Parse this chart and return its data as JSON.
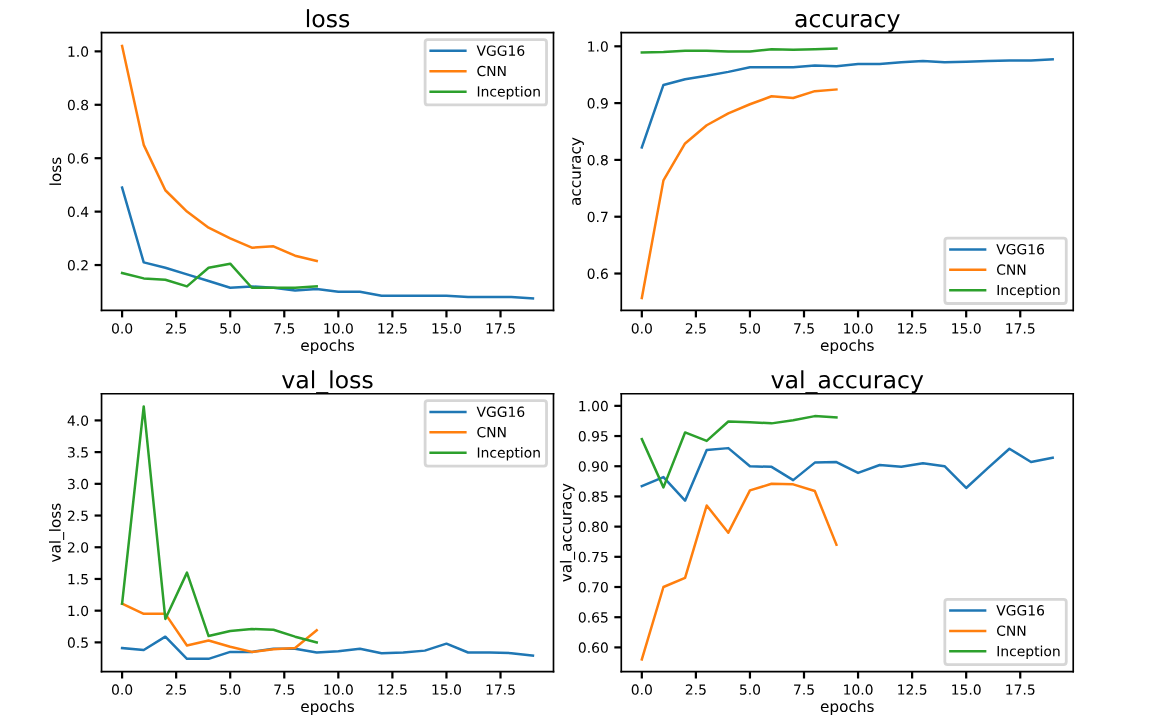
{
  "chart_data": [
    {
      "type": "line",
      "title": "loss",
      "xlabel": "epochs",
      "ylabel": "loss",
      "xlim": [
        -0.95,
        19.95
      ],
      "xticks": [
        {
          "value": 0,
          "label": "0.0"
        },
        2.5,
        {
          "value": 5,
          "label": "5.0"
        },
        7.5,
        {
          "value": 10,
          "label": "10.0"
        },
        12.5,
        {
          "value": 15,
          "label": "15.0"
        },
        17.5
      ],
      "ylim": [
        0.03,
        1.07
      ],
      "yticks": [
        0.2,
        0.4,
        0.6,
        0.8,
        {
          "value": 1,
          "label": "1.0"
        }
      ],
      "legend": "top right",
      "grid": false,
      "series": [
        {
          "name": "VGG16",
          "color": "#1f77b4",
          "x": [
            0,
            1,
            2,
            3,
            4,
            5,
            6,
            7,
            8,
            9,
            10,
            11,
            12,
            13,
            14,
            15,
            16,
            17,
            18,
            19
          ],
          "values": [
            0.49,
            0.21,
            0.19,
            0.165,
            0.14,
            0.115,
            0.12,
            0.115,
            0.105,
            0.11,
            0.1,
            0.1,
            0.085,
            0.085,
            0.085,
            0.085,
            0.08,
            0.08,
            0.08,
            0.075
          ]
        },
        {
          "name": "CNN",
          "color": "#ff7f0e",
          "x": [
            0,
            1,
            2,
            3,
            4,
            5,
            6,
            7,
            8,
            9
          ],
          "values": [
            1.02,
            0.65,
            0.48,
            0.4,
            0.34,
            0.3,
            0.265,
            0.27,
            0.235,
            0.215
          ]
        },
        {
          "name": "Inception",
          "color": "#2ca02c",
          "x": [
            0,
            1,
            2,
            3,
            4,
            5,
            6,
            7,
            8,
            9
          ],
          "values": [
            0.17,
            0.15,
            0.145,
            0.12,
            0.19,
            0.205,
            0.115,
            0.115,
            0.115,
            0.12
          ]
        }
      ]
    },
    {
      "type": "line",
      "title": "accuracy",
      "xlabel": "epochs",
      "ylabel": "accuracy",
      "xlim": [
        -0.95,
        19.95
      ],
      "xticks": [
        {
          "value": 0,
          "label": "0.0"
        },
        2.5,
        {
          "value": 5,
          "label": "5.0"
        },
        7.5,
        {
          "value": 10,
          "label": "10.0"
        },
        12.5,
        {
          "value": 15,
          "label": "15.0"
        },
        17.5
      ],
      "ylim": [
        0.535,
        1.024
      ],
      "yticks": [
        0.6,
        0.7,
        0.8,
        0.9,
        {
          "value": 1,
          "label": "1.0"
        }
      ],
      "legend": "bottom right",
      "grid": false,
      "series": [
        {
          "name": "VGG16",
          "color": "#1f77b4",
          "x": [
            0,
            1,
            2,
            3,
            4,
            5,
            6,
            7,
            8,
            9,
            10,
            11,
            12,
            13,
            14,
            15,
            16,
            17,
            18,
            19
          ],
          "values": [
            0.822,
            0.932,
            0.942,
            0.948,
            0.955,
            0.963,
            0.963,
            0.963,
            0.966,
            0.965,
            0.969,
            0.969,
            0.972,
            0.974,
            0.972,
            0.973,
            0.974,
            0.975,
            0.975,
            0.977
          ]
        },
        {
          "name": "CNN",
          "color": "#ff7f0e",
          "x": [
            0,
            1,
            2,
            3,
            4,
            5,
            6,
            7,
            8,
            9
          ],
          "values": [
            0.557,
            0.764,
            0.829,
            0.861,
            0.882,
            0.898,
            0.912,
            0.909,
            0.921,
            0.924
          ]
        },
        {
          "name": "Inception",
          "color": "#2ca02c",
          "x": [
            0,
            1,
            2,
            3,
            4,
            5,
            6,
            7,
            8,
            9
          ],
          "values": [
            0.989,
            0.99,
            0.992,
            0.992,
            0.991,
            0.991,
            0.995,
            0.994,
            0.995,
            0.996
          ]
        }
      ]
    },
    {
      "type": "line",
      "title": "val_loss",
      "xlabel": "epochs",
      "ylabel": "val_loss",
      "xlim": [
        -0.95,
        19.95
      ],
      "xticks": [
        {
          "value": 0,
          "label": "0.0"
        },
        2.5,
        {
          "value": 5,
          "label": "5.0"
        },
        7.5,
        {
          "value": 10,
          "label": "10.0"
        },
        12.5,
        {
          "value": 15,
          "label": "15.0"
        },
        17.5
      ],
      "ylim": [
        0.04,
        4.42
      ],
      "yticks": [
        0.5,
        {
          "value": 1,
          "label": "1.0"
        },
        1.5,
        {
          "value": 2,
          "label": "2.0"
        },
        2.5,
        {
          "value": 3,
          "label": "3.0"
        },
        3.5,
        {
          "value": 4,
          "label": "4.0"
        }
      ],
      "legend": "top right",
      "grid": false,
      "series": [
        {
          "name": "VGG16",
          "color": "#1f77b4",
          "x": [
            0,
            1,
            2,
            3,
            4,
            5,
            6,
            7,
            8,
            9,
            10,
            11,
            12,
            13,
            14,
            15,
            16,
            17,
            18,
            19
          ],
          "values": [
            0.41,
            0.38,
            0.59,
            0.24,
            0.24,
            0.35,
            0.35,
            0.4,
            0.4,
            0.34,
            0.36,
            0.4,
            0.33,
            0.34,
            0.37,
            0.48,
            0.34,
            0.34,
            0.33,
            0.29
          ]
        },
        {
          "name": "CNN",
          "color": "#ff7f0e",
          "x": [
            0,
            1,
            2,
            3,
            4,
            5,
            6,
            7,
            8,
            9
          ],
          "values": [
            1.11,
            0.95,
            0.95,
            0.45,
            0.53,
            0.43,
            0.35,
            0.39,
            0.41,
            0.69
          ]
        },
        {
          "name": "Inception",
          "color": "#2ca02c",
          "x": [
            0,
            1,
            2,
            3,
            4,
            5,
            6,
            7,
            8,
            9
          ],
          "values": [
            1.11,
            4.22,
            0.87,
            1.6,
            0.6,
            0.68,
            0.71,
            0.7,
            0.59,
            0.5
          ]
        }
      ]
    },
    {
      "type": "line",
      "title": "val_accuracy",
      "xlabel": "epochs",
      "ylabel": "val_accuracy",
      "xlim": [
        -0.95,
        19.95
      ],
      "xticks": [
        {
          "value": 0,
          "label": "0.0"
        },
        2.5,
        {
          "value": 5,
          "label": "5.0"
        },
        7.5,
        {
          "value": 10,
          "label": "10.0"
        },
        12.5,
        {
          "value": 15,
          "label": "15.0"
        },
        17.5
      ],
      "ylim": [
        0.56,
        1.02
      ],
      "yticks": [
        {
          "value": 0.6,
          "label": "0.60"
        },
        0.65,
        {
          "value": 0.7,
          "label": "0.70"
        },
        0.75,
        {
          "value": 0.8,
          "label": "0.80"
        },
        0.85,
        {
          "value": 0.9,
          "label": "0.90"
        },
        0.95,
        {
          "value": 1,
          "label": "1.00"
        }
      ],
      "legend": "bottom right",
      "grid": false,
      "series": [
        {
          "name": "VGG16",
          "color": "#1f77b4",
          "x": [
            0,
            1,
            2,
            3,
            4,
            5,
            6,
            7,
            8,
            9,
            10,
            11,
            12,
            13,
            14,
            15,
            16,
            17,
            18,
            19
          ],
          "values": [
            0.867,
            0.882,
            0.843,
            0.927,
            0.93,
            0.9,
            0.899,
            0.877,
            0.906,
            0.907,
            0.889,
            0.902,
            0.899,
            0.905,
            0.9,
            0.864,
            0.897,
            0.929,
            0.907,
            0.914
          ]
        },
        {
          "name": "CNN",
          "color": "#ff7f0e",
          "x": [
            0,
            1,
            2,
            3,
            4,
            5,
            6,
            7,
            8,
            9
          ],
          "values": [
            0.58,
            0.7,
            0.715,
            0.835,
            0.79,
            0.86,
            0.871,
            0.87,
            0.859,
            0.77
          ]
        },
        {
          "name": "Inception",
          "color": "#2ca02c",
          "x": [
            0,
            1,
            2,
            3,
            4,
            5,
            6,
            7,
            8,
            9
          ],
          "values": [
            0.945,
            0.865,
            0.956,
            0.942,
            0.974,
            0.973,
            0.971,
            0.976,
            0.983,
            0.981
          ]
        }
      ]
    }
  ]
}
